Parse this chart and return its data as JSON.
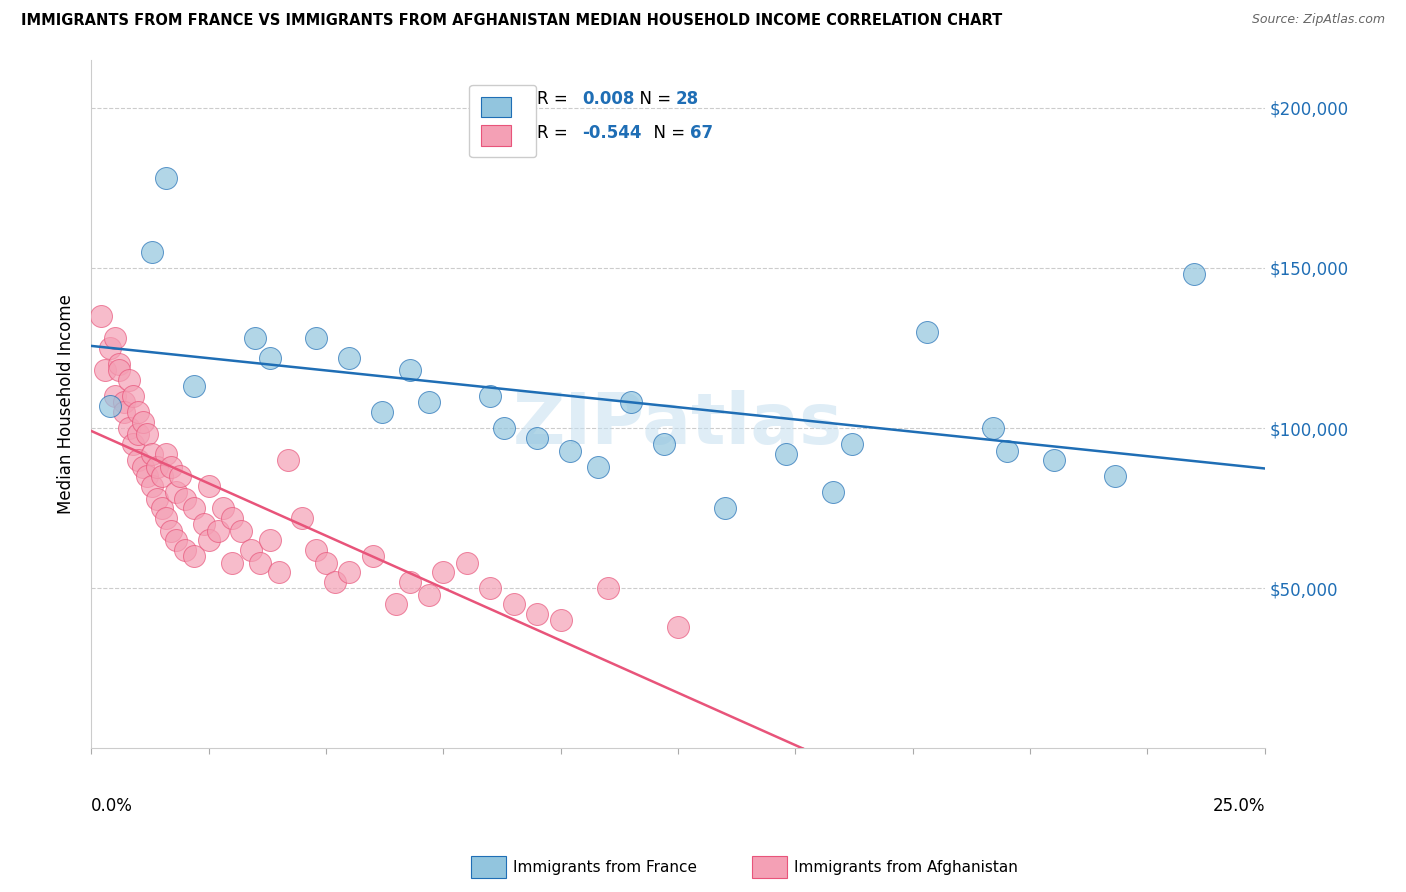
{
  "title": "IMMIGRANTS FROM FRANCE VS IMMIGRANTS FROM AFGHANISTAN MEDIAN HOUSEHOLD INCOME CORRELATION CHART",
  "source": "Source: ZipAtlas.com",
  "ylabel": "Median Household Income",
  "yticks": [
    50000,
    100000,
    150000,
    200000
  ],
  "ytick_labels": [
    "$50,000",
    "$100,000",
    "$150,000",
    "$200,000"
  ],
  "xlim": [
    0.0,
    0.25
  ],
  "ylim": [
    0,
    215000
  ],
  "watermark": "ZIPatlas",
  "legend_r1": "0.008",
  "legend_n1": "28",
  "legend_r2": "-0.544",
  "legend_n2": "67",
  "color_france": "#92c5de",
  "color_afghanistan": "#f4a0b5",
  "trendline_france_color": "#1f6eb5",
  "trendline_afghanistan_color": "#e8547a",
  "france_points": [
    [
      0.004,
      107000
    ],
    [
      0.013,
      155000
    ],
    [
      0.016,
      178000
    ],
    [
      0.022,
      113000
    ],
    [
      0.035,
      128000
    ],
    [
      0.038,
      122000
    ],
    [
      0.048,
      128000
    ],
    [
      0.055,
      122000
    ],
    [
      0.062,
      105000
    ],
    [
      0.068,
      118000
    ],
    [
      0.072,
      108000
    ],
    [
      0.085,
      110000
    ],
    [
      0.088,
      100000
    ],
    [
      0.095,
      97000
    ],
    [
      0.102,
      93000
    ],
    [
      0.108,
      88000
    ],
    [
      0.115,
      108000
    ],
    [
      0.122,
      95000
    ],
    [
      0.135,
      75000
    ],
    [
      0.148,
      92000
    ],
    [
      0.158,
      80000
    ],
    [
      0.162,
      95000
    ],
    [
      0.178,
      130000
    ],
    [
      0.192,
      100000
    ],
    [
      0.195,
      93000
    ],
    [
      0.205,
      90000
    ],
    [
      0.218,
      85000
    ],
    [
      0.235,
      148000
    ]
  ],
  "afghanistan_points": [
    [
      0.002,
      135000
    ],
    [
      0.003,
      118000
    ],
    [
      0.004,
      125000
    ],
    [
      0.005,
      128000
    ],
    [
      0.005,
      110000
    ],
    [
      0.006,
      120000
    ],
    [
      0.006,
      118000
    ],
    [
      0.007,
      108000
    ],
    [
      0.007,
      105000
    ],
    [
      0.008,
      115000
    ],
    [
      0.008,
      100000
    ],
    [
      0.009,
      110000
    ],
    [
      0.009,
      95000
    ],
    [
      0.01,
      105000
    ],
    [
      0.01,
      98000
    ],
    [
      0.01,
      90000
    ],
    [
      0.011,
      102000
    ],
    [
      0.011,
      88000
    ],
    [
      0.012,
      98000
    ],
    [
      0.012,
      85000
    ],
    [
      0.013,
      92000
    ],
    [
      0.013,
      82000
    ],
    [
      0.014,
      88000
    ],
    [
      0.014,
      78000
    ],
    [
      0.015,
      85000
    ],
    [
      0.015,
      75000
    ],
    [
      0.016,
      92000
    ],
    [
      0.016,
      72000
    ],
    [
      0.017,
      88000
    ],
    [
      0.017,
      68000
    ],
    [
      0.018,
      80000
    ],
    [
      0.018,
      65000
    ],
    [
      0.019,
      85000
    ],
    [
      0.02,
      78000
    ],
    [
      0.02,
      62000
    ],
    [
      0.022,
      75000
    ],
    [
      0.022,
      60000
    ],
    [
      0.024,
      70000
    ],
    [
      0.025,
      82000
    ],
    [
      0.025,
      65000
    ],
    [
      0.027,
      68000
    ],
    [
      0.028,
      75000
    ],
    [
      0.03,
      72000
    ],
    [
      0.03,
      58000
    ],
    [
      0.032,
      68000
    ],
    [
      0.034,
      62000
    ],
    [
      0.036,
      58000
    ],
    [
      0.038,
      65000
    ],
    [
      0.04,
      55000
    ],
    [
      0.042,
      90000
    ],
    [
      0.045,
      72000
    ],
    [
      0.048,
      62000
    ],
    [
      0.05,
      58000
    ],
    [
      0.052,
      52000
    ],
    [
      0.055,
      55000
    ],
    [
      0.06,
      60000
    ],
    [
      0.065,
      45000
    ],
    [
      0.068,
      52000
    ],
    [
      0.072,
      48000
    ],
    [
      0.075,
      55000
    ],
    [
      0.08,
      58000
    ],
    [
      0.085,
      50000
    ],
    [
      0.09,
      45000
    ],
    [
      0.095,
      42000
    ],
    [
      0.1,
      40000
    ],
    [
      0.11,
      50000
    ],
    [
      0.125,
      38000
    ]
  ]
}
